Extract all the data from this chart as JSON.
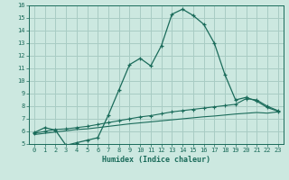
{
  "xlabel": "Humidex (Indice chaleur)",
  "bg_color": "#cce8e0",
  "grid_color": "#a8ccc4",
  "line_color": "#1a6b5a",
  "xlim": [
    -0.5,
    23.5
  ],
  "ylim": [
    5,
    16
  ],
  "xticks": [
    0,
    1,
    2,
    3,
    4,
    5,
    6,
    7,
    8,
    9,
    10,
    11,
    12,
    13,
    14,
    15,
    16,
    17,
    18,
    19,
    20,
    21,
    22,
    23
  ],
  "yticks": [
    5,
    6,
    7,
    8,
    9,
    10,
    11,
    12,
    13,
    14,
    15,
    16
  ],
  "curve1_x": [
    0,
    1,
    2,
    3,
    4,
    5,
    6,
    7,
    8,
    9,
    10,
    11,
    12,
    13,
    14,
    15,
    16,
    17,
    18,
    19,
    20,
    21,
    22,
    23
  ],
  "curve1_y": [
    5.9,
    6.3,
    6.1,
    4.9,
    5.1,
    5.3,
    5.5,
    7.3,
    9.3,
    11.3,
    11.8,
    11.2,
    12.8,
    15.3,
    15.7,
    15.2,
    14.5,
    13.0,
    10.5,
    8.5,
    8.7,
    8.4,
    7.9,
    7.6
  ],
  "curve2_x": [
    0,
    1,
    2,
    3,
    4,
    5,
    6,
    7,
    8,
    9,
    10,
    11,
    12,
    13,
    14,
    15,
    16,
    17,
    18,
    19,
    20,
    21,
    22,
    23
  ],
  "curve2_y": [
    5.85,
    6.0,
    6.15,
    6.2,
    6.3,
    6.4,
    6.55,
    6.7,
    6.85,
    7.0,
    7.15,
    7.25,
    7.4,
    7.55,
    7.65,
    7.75,
    7.85,
    7.95,
    8.05,
    8.15,
    8.6,
    8.5,
    8.0,
    7.65
  ],
  "curve3_x": [
    0,
    1,
    2,
    3,
    4,
    5,
    6,
    7,
    8,
    9,
    10,
    11,
    12,
    13,
    14,
    15,
    16,
    17,
    18,
    19,
    20,
    21,
    22,
    23
  ],
  "curve3_y": [
    5.75,
    5.85,
    5.95,
    6.05,
    6.15,
    6.2,
    6.3,
    6.4,
    6.5,
    6.6,
    6.68,
    6.76,
    6.84,
    6.92,
    7.0,
    7.08,
    7.16,
    7.22,
    7.3,
    7.38,
    7.44,
    7.5,
    7.45,
    7.55
  ]
}
